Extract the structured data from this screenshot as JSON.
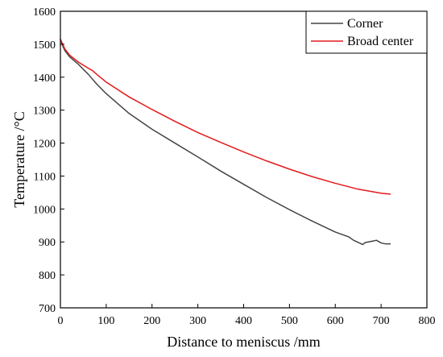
{
  "chart_data": {
    "type": "line",
    "title": "",
    "xlabel": "Distance to meniscus /mm",
    "ylabel": "Temperature /°C",
    "xlim": [
      0,
      800
    ],
    "ylim": [
      700,
      1600
    ],
    "xticks": [
      "0",
      "100",
      "200",
      "300",
      "400",
      "500",
      "600",
      "700",
      "800"
    ],
    "yticks": [
      "700",
      "800",
      "900",
      "1000",
      "1100",
      "1200",
      "1300",
      "1400",
      "1500",
      "1600"
    ],
    "grid": false,
    "legend_position": "top-right",
    "series": [
      {
        "name": "Corner",
        "color": "#444444",
        "points": [
          [
            0,
            1515
          ],
          [
            5,
            1495
          ],
          [
            10,
            1480
          ],
          [
            20,
            1462
          ],
          [
            40,
            1438
          ],
          [
            60,
            1410
          ],
          [
            80,
            1378
          ],
          [
            100,
            1350
          ],
          [
            150,
            1290
          ],
          [
            200,
            1242
          ],
          [
            250,
            1200
          ],
          [
            300,
            1158
          ],
          [
            350,
            1115
          ],
          [
            400,
            1075
          ],
          [
            450,
            1035
          ],
          [
            500,
            998
          ],
          [
            550,
            963
          ],
          [
            600,
            930
          ],
          [
            630,
            915
          ],
          [
            640,
            905
          ],
          [
            660,
            892
          ],
          [
            665,
            898
          ],
          [
            680,
            902
          ],
          [
            690,
            905
          ],
          [
            700,
            897
          ],
          [
            710,
            894
          ],
          [
            720,
            894
          ]
        ]
      },
      {
        "name": "Broad center",
        "color": "#e31a1c",
        "points": [
          [
            0,
            1515
          ],
          [
            5,
            1500
          ],
          [
            10,
            1485
          ],
          [
            20,
            1467
          ],
          [
            40,
            1445
          ],
          [
            60,
            1428
          ],
          [
            70,
            1420
          ],
          [
            80,
            1408
          ],
          [
            100,
            1385
          ],
          [
            150,
            1340
          ],
          [
            200,
            1302
          ],
          [
            250,
            1266
          ],
          [
            300,
            1232
          ],
          [
            350,
            1202
          ],
          [
            400,
            1173
          ],
          [
            450,
            1146
          ],
          [
            500,
            1121
          ],
          [
            550,
            1098
          ],
          [
            600,
            1078
          ],
          [
            650,
            1060
          ],
          [
            700,
            1048
          ],
          [
            720,
            1045
          ]
        ]
      }
    ]
  }
}
